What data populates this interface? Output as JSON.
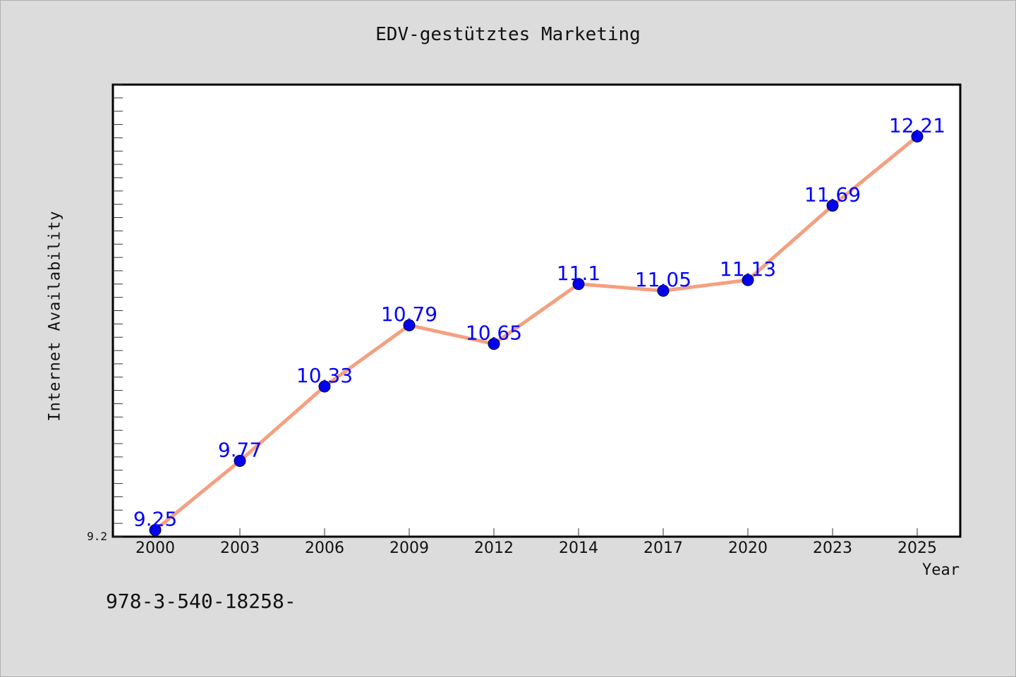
{
  "chart_data": {
    "type": "line",
    "title": "EDV-gestütztes Marketing",
    "xlabel": "Year",
    "ylabel": "Internet Availability",
    "categories": [
      "2000",
      "2003",
      "2006",
      "2009",
      "2012",
      "2014",
      "2017",
      "2020",
      "2023",
      "2025"
    ],
    "series": [
      {
        "values": [
          9.25,
          9.77,
          10.33,
          10.79,
          10.65,
          11.1,
          11.05,
          11.13,
          11.69,
          12.21
        ]
      }
    ],
    "data_labels": [
      "9.25",
      "9.77",
      "10.33",
      "10.79",
      "10.65",
      "11.1",
      "11.05",
      "11.13",
      "11.69",
      "12.21"
    ],
    "ylim": [
      9.2,
      12.6
    ],
    "y_tick_labels": [
      "9.2"
    ],
    "grid": false,
    "line_color": "#f4a080",
    "marker_color": "#0000ee",
    "label_color": "#0000ff"
  },
  "footer": {
    "text": "978-3-540-18258-"
  }
}
